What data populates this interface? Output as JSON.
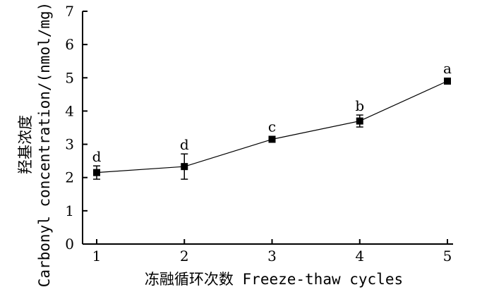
{
  "chart_data": {
    "type": "line",
    "title": "",
    "xlabel": "冻融循环次数 Freeze-thaw cycles",
    "ylabel_lines": [
      "羟基浓度",
      "Carbonyl concentration/(nmol/mg)"
    ],
    "x": [
      1,
      2,
      3,
      4,
      5
    ],
    "xlim": [
      1,
      5
    ],
    "ylim": [
      0,
      7
    ],
    "xticks": [
      1,
      2,
      3,
      4,
      5
    ],
    "yticks": [
      0,
      1,
      2,
      3,
      4,
      5,
      6,
      7
    ],
    "grid": false,
    "series": [
      {
        "values": [
          2.15,
          2.33,
          3.15,
          3.7,
          4.9
        ],
        "errors": [
          0.2,
          0.38,
          0.05,
          0.18,
          0.06
        ],
        "significance": [
          "d",
          "d",
          "c",
          "b",
          "a"
        ],
        "marker": "square",
        "color": "#000000"
      }
    ]
  }
}
